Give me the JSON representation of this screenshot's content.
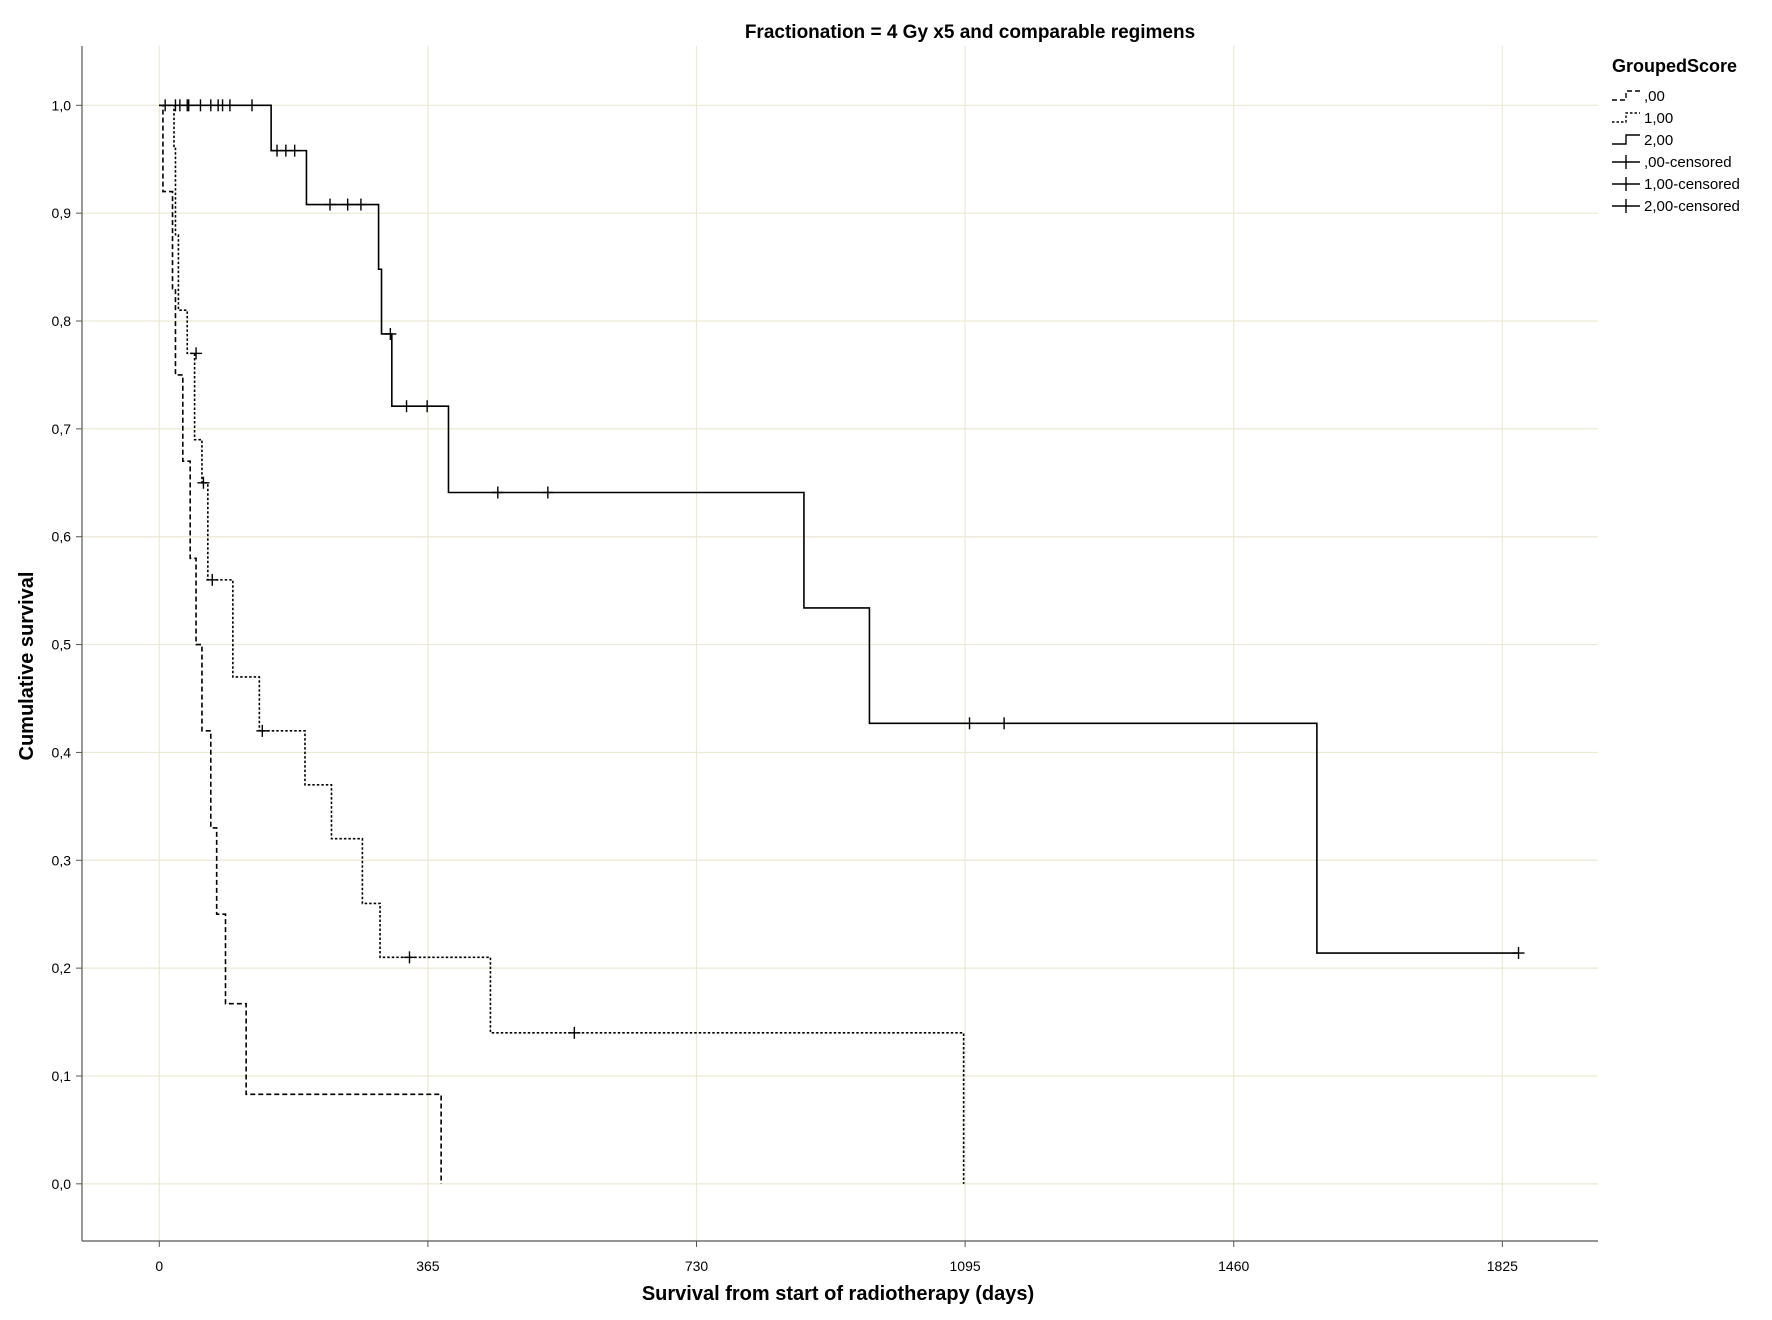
{
  "chart_data": {
    "type": "line",
    "subtype": "kaplan-meier step",
    "title": "Fractionation = 4 Gy x5 and comparable regimens",
    "xlabel": "Survival from start of radiotherapy (days)",
    "ylabel": "Cumulative survival",
    "xlim": [
      -105,
      1955
    ],
    "ylim": [
      -0.053,
      1.055
    ],
    "x_ticks": [
      0,
      365,
      730,
      1095,
      1460,
      1825
    ],
    "y_ticks": [
      0.0,
      0.1,
      0.2,
      0.3,
      0.4,
      0.5,
      0.6,
      0.7,
      0.8,
      0.9,
      1.0
    ],
    "y_tick_labels": [
      "0,0",
      "0,1",
      "0,2",
      "0,3",
      "0,4",
      "0,5",
      "0,6",
      "0,7",
      "0,8",
      "0,9",
      "1,0"
    ],
    "grid": true,
    "legend_position": "top-right, outside plot",
    "legend": {
      "title": "GroupedScore",
      "entries": [
        ",00",
        "1,00",
        "2,00",
        ",00-censored",
        "1,00-censored",
        "2,00-censored"
      ]
    },
    "series": [
      {
        "name": ",00",
        "style": "dashed",
        "steps": [
          [
            0,
            1.0
          ],
          [
            5,
            0.92
          ],
          [
            18,
            0.83
          ],
          [
            22,
            0.75
          ],
          [
            32,
            0.67
          ],
          [
            42,
            0.58
          ],
          [
            50,
            0.5
          ],
          [
            58,
            0.42
          ],
          [
            70,
            0.33
          ],
          [
            78,
            0.25
          ],
          [
            90,
            0.167
          ],
          [
            118,
            0.083
          ],
          [
            383,
            0.0
          ]
        ],
        "censored": [
          [
            28,
            1.0
          ]
        ]
      },
      {
        "name": "1,00",
        "style": "dotted",
        "steps": [
          [
            0,
            1.0
          ],
          [
            20,
            0.96
          ],
          [
            22,
            0.88
          ],
          [
            26,
            0.81
          ],
          [
            38,
            0.77
          ],
          [
            48,
            0.69
          ],
          [
            58,
            0.65
          ],
          [
            66,
            0.56
          ],
          [
            100,
            0.47
          ],
          [
            136,
            0.42
          ],
          [
            198,
            0.37
          ],
          [
            234,
            0.32
          ],
          [
            276,
            0.26
          ],
          [
            300,
            0.21
          ],
          [
            450,
            0.14
          ],
          [
            1093,
            0.0
          ]
        ],
        "censored": [
          [
            40,
            1.0
          ],
          [
            50,
            0.77
          ],
          [
            60,
            0.65
          ],
          [
            72,
            0.56
          ],
          [
            140,
            0.42
          ],
          [
            340,
            0.21
          ],
          [
            564,
            0.14
          ]
        ]
      },
      {
        "name": "2,00",
        "style": "solid",
        "steps": [
          [
            0,
            1.0
          ],
          [
            152,
            0.958
          ],
          [
            200,
            0.908
          ],
          [
            298,
            0.848
          ],
          [
            302,
            0.788
          ],
          [
            316,
            0.721
          ],
          [
            393,
            0.641
          ],
          [
            876,
            0.534
          ],
          [
            965,
            0.427
          ],
          [
            1573,
            0.214
          ]
        ],
        "censored": [
          [
            8,
            1.0
          ],
          [
            22,
            1.0
          ],
          [
            38,
            1.0
          ],
          [
            56,
            1.0
          ],
          [
            70,
            1.0
          ],
          [
            80,
            1.0
          ],
          [
            86,
            1.0
          ],
          [
            96,
            1.0
          ],
          [
            126,
            1.0
          ],
          [
            160,
            0.958
          ],
          [
            172,
            0.958
          ],
          [
            184,
            0.958
          ],
          [
            232,
            0.908
          ],
          [
            256,
            0.908
          ],
          [
            274,
            0.908
          ],
          [
            314,
            0.788
          ],
          [
            336,
            0.721
          ],
          [
            364,
            0.721
          ],
          [
            460,
            0.641
          ],
          [
            528,
            0.641
          ],
          [
            1101,
            0.427
          ],
          [
            1148,
            0.427
          ],
          [
            1847,
            0.214
          ]
        ]
      }
    ]
  }
}
